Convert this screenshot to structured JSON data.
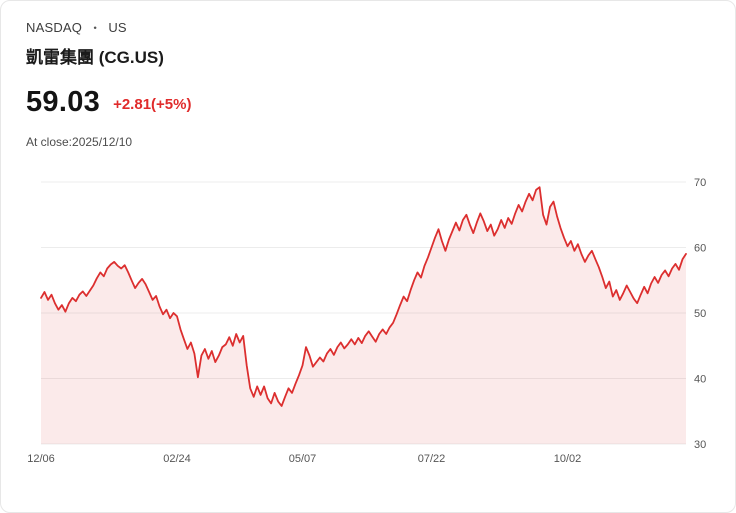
{
  "header": {
    "exchange": "NASDAQ",
    "separator": "・",
    "region": "US",
    "title": "凱雷集團 (CG.US)",
    "price": "59.03",
    "change": "+2.81(+5%)",
    "close_info": "At close:2025/12/10"
  },
  "colors": {
    "change_red": "#e02b2b",
    "line_red": "#dc2f2f",
    "fill_pink": "rgba(220,47,47,0.10)",
    "grid_gray": "#ececec",
    "axis_text": "#555555"
  },
  "chart_data": {
    "type": "area",
    "title": "凱雷集團 (CG.US) price history",
    "xlabel": "",
    "ylabel": "",
    "ylim": [
      30,
      70
    ],
    "grid": true,
    "y_axis_side": "right",
    "y_ticks": [
      30,
      40,
      50,
      60,
      70
    ],
    "x_ticks": [
      {
        "label": "12/06",
        "index": 0
      },
      {
        "label": "02/24",
        "index": 39
      },
      {
        "label": "05/07",
        "index": 75
      },
      {
        "label": "07/22",
        "index": 112
      },
      {
        "label": "10/02",
        "index": 151
      }
    ],
    "line_color": "#dc2f2f",
    "fill_color": "rgba(220,47,47,0.10)",
    "last_close": 59.03,
    "values": [
      52.3,
      53.2,
      52.0,
      52.8,
      51.5,
      50.5,
      51.2,
      50.2,
      51.5,
      52.3,
      51.8,
      52.8,
      53.3,
      52.6,
      53.4,
      54.2,
      55.3,
      56.2,
      55.6,
      56.8,
      57.4,
      57.8,
      57.2,
      56.8,
      57.3,
      56.2,
      55.0,
      53.8,
      54.6,
      55.2,
      54.4,
      53.2,
      52.0,
      52.6,
      51.0,
      49.8,
      50.5,
      49.2,
      50.0,
      49.5,
      47.5,
      46.0,
      44.5,
      45.5,
      43.8,
      40.2,
      43.5,
      44.5,
      43.0,
      44.2,
      42.5,
      43.5,
      44.8,
      45.2,
      46.3,
      45.0,
      46.8,
      45.5,
      46.5,
      42.0,
      38.5,
      37.2,
      38.8,
      37.5,
      38.8,
      37.0,
      36.2,
      37.8,
      36.5,
      35.8,
      37.2,
      38.5,
      37.8,
      39.2,
      40.5,
      42.0,
      44.8,
      43.5,
      41.8,
      42.5,
      43.2,
      42.6,
      43.8,
      44.5,
      43.6,
      44.8,
      45.5,
      44.6,
      45.2,
      46.0,
      45.2,
      46.2,
      45.4,
      46.5,
      47.2,
      46.4,
      45.6,
      46.8,
      47.5,
      46.8,
      47.8,
      48.5,
      49.8,
      51.2,
      52.5,
      51.8,
      53.5,
      55.0,
      56.2,
      55.4,
      57.2,
      58.5,
      60.0,
      61.5,
      62.8,
      61.0,
      59.5,
      61.2,
      62.5,
      63.8,
      62.6,
      64.2,
      65.0,
      63.5,
      62.2,
      63.8,
      65.2,
      64.0,
      62.5,
      63.5,
      61.8,
      62.8,
      64.2,
      63.0,
      64.5,
      63.6,
      65.2,
      66.5,
      65.5,
      67.0,
      68.2,
      67.2,
      68.8,
      69.2,
      65.0,
      63.5,
      66.2,
      67.0,
      64.8,
      63.0,
      61.5,
      60.2,
      61.0,
      59.5,
      60.5,
      59.0,
      57.8,
      58.8,
      59.5,
      58.2,
      57.0,
      55.5,
      53.8,
      54.8,
      52.5,
      53.5,
      52.0,
      53.0,
      54.2,
      53.2,
      52.2,
      51.5,
      52.8,
      54.0,
      53.0,
      54.5,
      55.5,
      54.6,
      55.8,
      56.5,
      55.6,
      56.8,
      57.5,
      56.6,
      58.2,
      59.03
    ]
  }
}
